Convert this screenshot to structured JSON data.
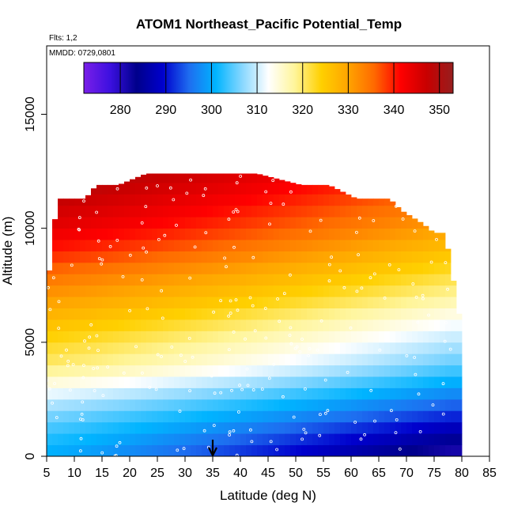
{
  "chart_data": {
    "type": "heatmap",
    "title": "ATOM1 Northeast_Pacific Potential_Temp",
    "notes": [
      "Flts: 1,2",
      "MMDD: 0729,0801"
    ],
    "xlabel": "Latitude (deg N)",
    "ylabel": "Altitude (m)",
    "xlim": [
      5,
      85
    ],
    "ylim": [
      0,
      18000
    ],
    "x_ticks": [
      5,
      10,
      15,
      20,
      25,
      30,
      35,
      40,
      45,
      50,
      55,
      60,
      65,
      70,
      75,
      80,
      85
    ],
    "y_ticks": [
      0,
      5000,
      10000,
      15000
    ],
    "colorbar": {
      "range": [
        272,
        353
      ],
      "ticks": [
        280,
        290,
        300,
        310,
        320,
        330,
        340,
        350
      ],
      "colors": [
        "#7a1fe8",
        "#3c10e0",
        "#00008b",
        "#0000cd",
        "#1e6ef0",
        "#00b4ff",
        "#87d7ff",
        "#ffffff",
        "#fff59a",
        "#ffd000",
        "#ffa500",
        "#ff6a00",
        "#ff0000",
        "#c80000",
        "#961e1e"
      ]
    },
    "top_altitude_profile": {
      "latitude": [
        5,
        6,
        7,
        9,
        12,
        14,
        18,
        23,
        26,
        31,
        36,
        43,
        51,
        56,
        61,
        67,
        69,
        71,
        73,
        75,
        77,
        78,
        79,
        80
      ],
      "altitude": [
        6800,
        9500,
        11300,
        11300,
        11300,
        11900,
        11900,
        12400,
        12400,
        12400,
        12400,
        12400,
        11900,
        11900,
        11300,
        11300,
        10800,
        10500,
        10200,
        9800,
        9800,
        8400,
        7000,
        5500
      ]
    },
    "potential_temperature_profile": {
      "altitude": [
        0,
        1000,
        2000,
        3000,
        4000,
        5000,
        6000,
        7000,
        8000,
        9000,
        10000,
        11000,
        12000,
        13000
      ],
      "south_value": [
        300,
        303,
        307,
        313,
        320,
        323,
        327,
        331,
        335,
        340,
        344,
        347,
        350,
        352
      ],
      "north_value": [
        280,
        286,
        293,
        299,
        305,
        309,
        313,
        318,
        322,
        326,
        330,
        333,
        336,
        338
      ]
    },
    "marker_arrow_latitude": 35
  }
}
